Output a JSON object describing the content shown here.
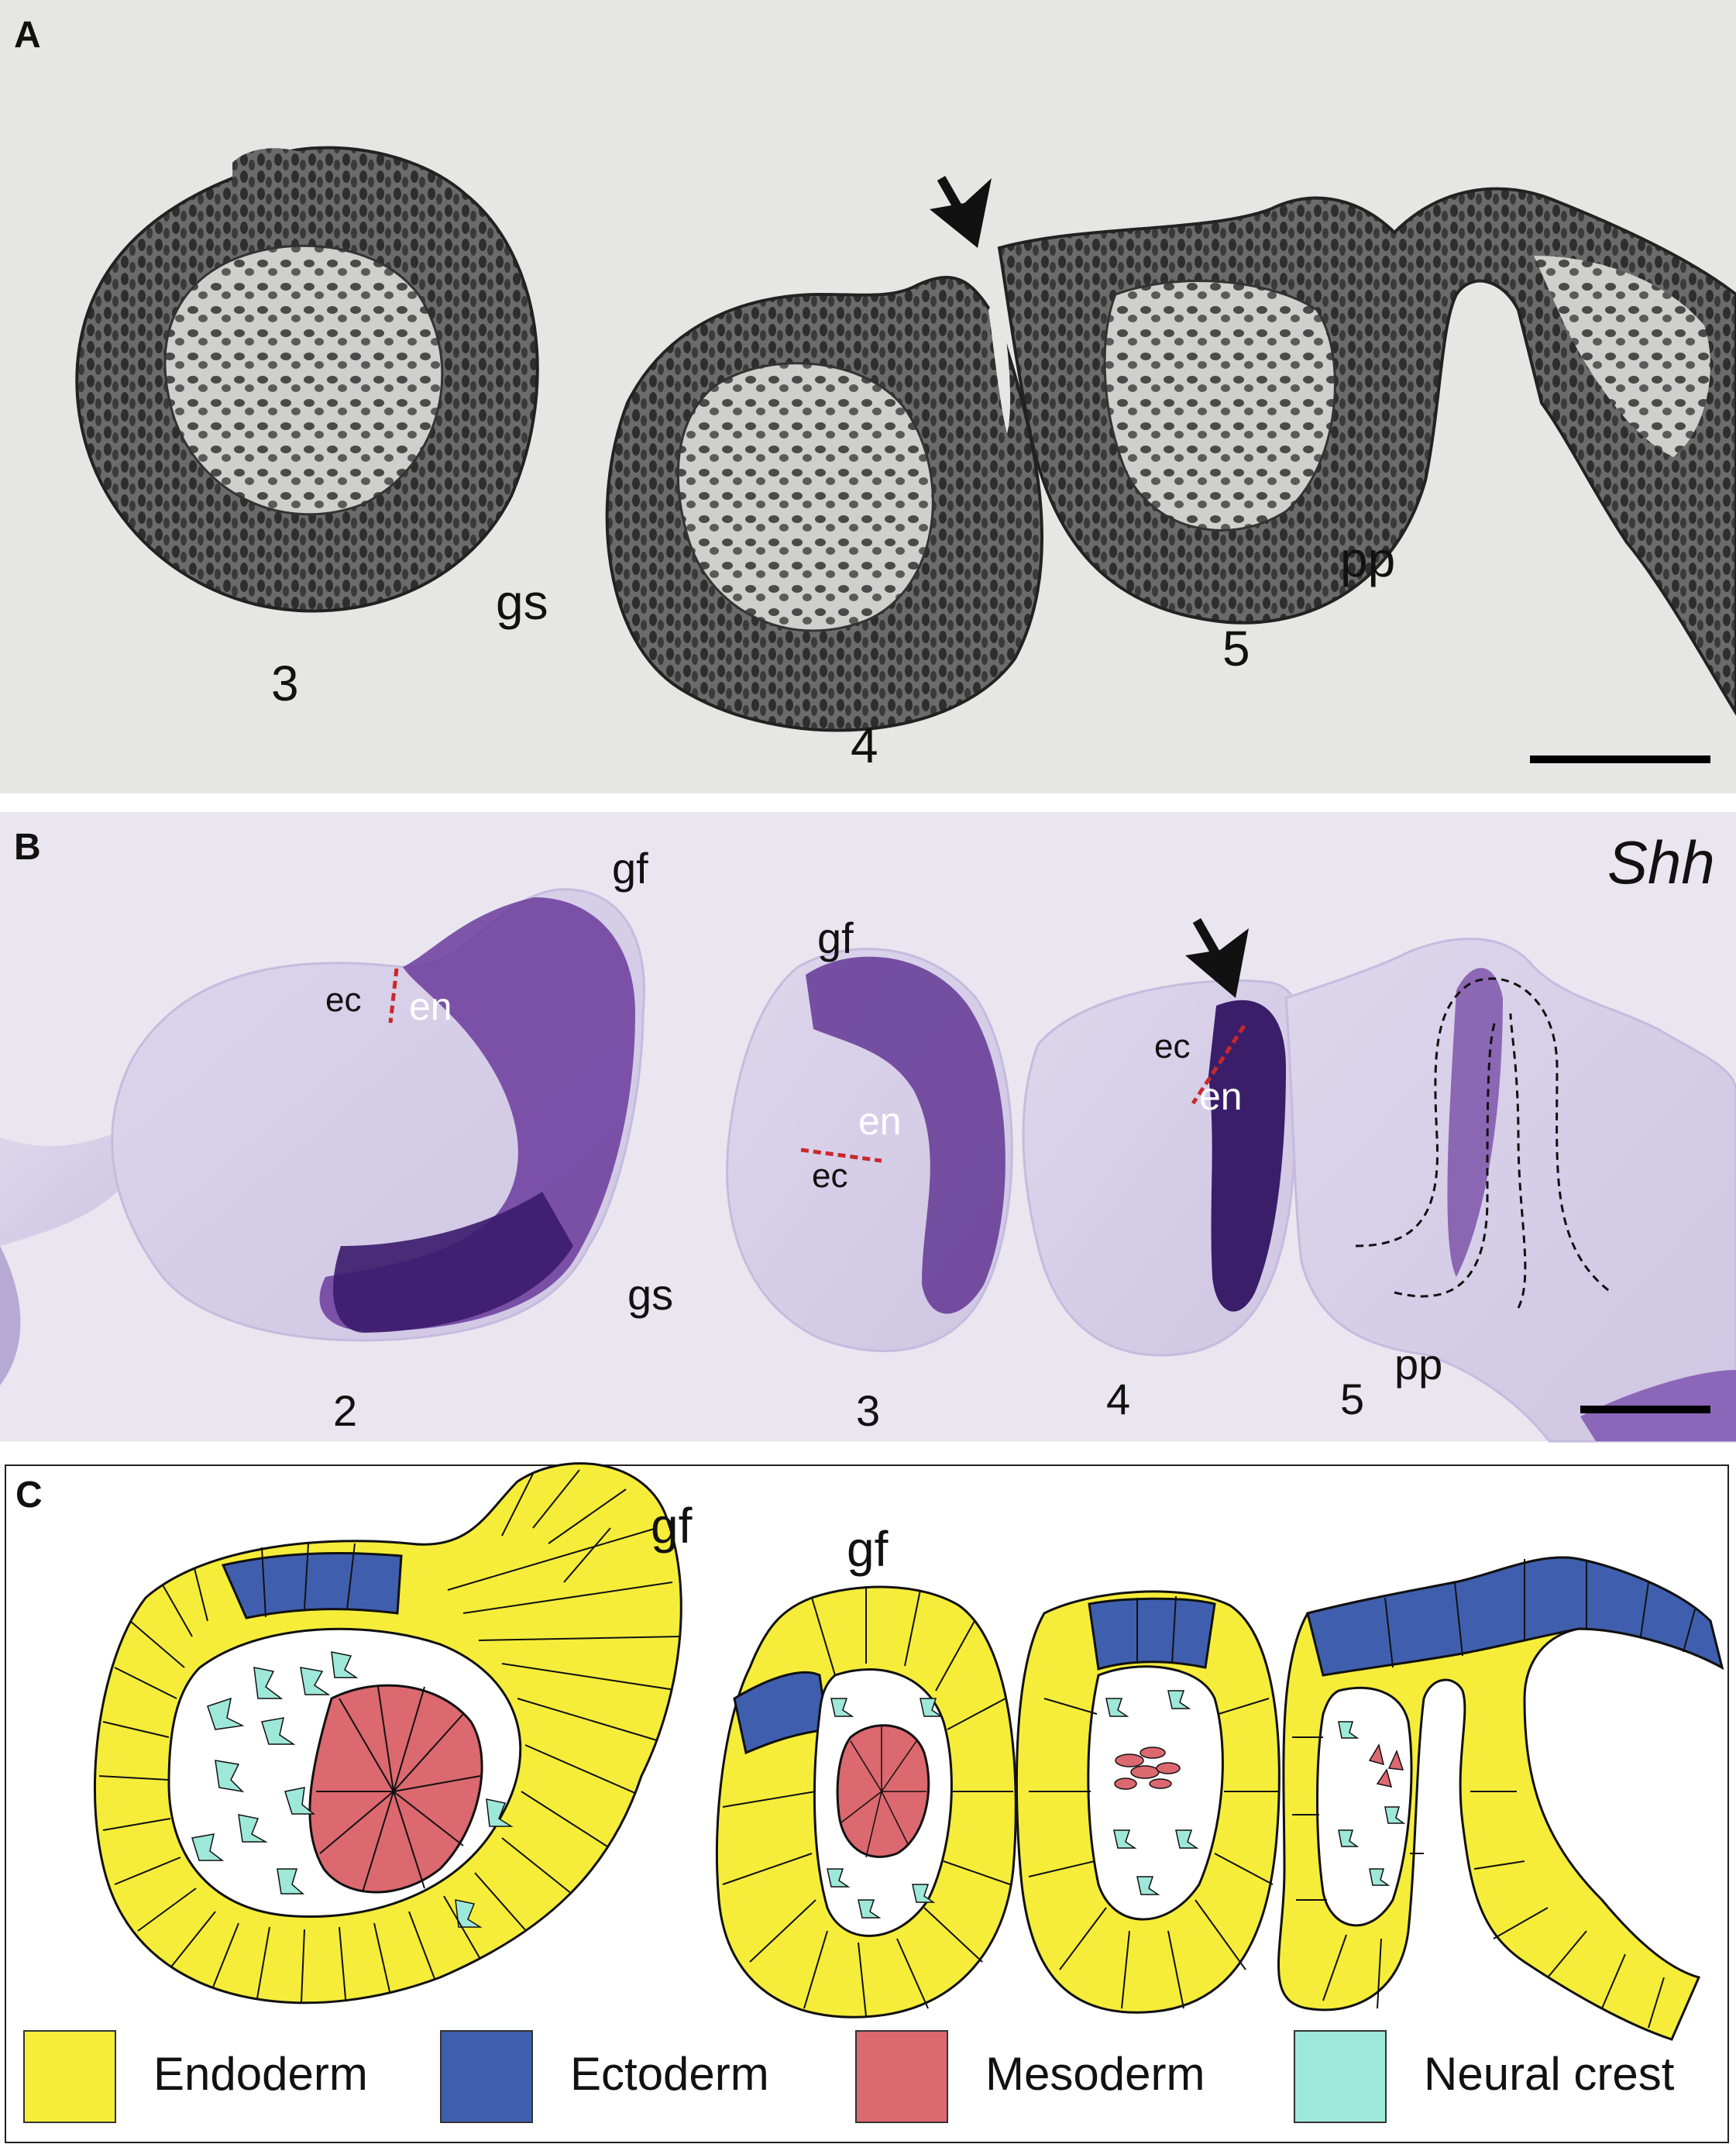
{
  "panels": {
    "a": {
      "label": "A",
      "labels": {
        "gs": "gs",
        "pp": "pp",
        "n3": "3",
        "n4": "4",
        "n5": "5"
      }
    },
    "b": {
      "label": "B",
      "gene": "Shh",
      "labels": {
        "gf_left": "gf",
        "gf_mid": "gf",
        "ec1": "ec",
        "en1": "en",
        "ec2": "ec",
        "en2": "en",
        "ec3": "ec",
        "en3": "en",
        "gs": "gs",
        "pp": "pp",
        "n2": "2",
        "n3": "3",
        "n4": "4",
        "n5": "5"
      }
    },
    "c": {
      "label": "C",
      "labels": {
        "gf_left": "gf",
        "gf_mid": "gf"
      },
      "legend": [
        {
          "label": "Endoderm",
          "color": "#f5ed3a"
        },
        {
          "label": "Ectoderm",
          "color": "#3f5fae"
        },
        {
          "label": "Mesoderm",
          "color": "#dc6870"
        },
        {
          "label": "Neural crest",
          "color": "#9ee8d9"
        }
      ]
    }
  }
}
